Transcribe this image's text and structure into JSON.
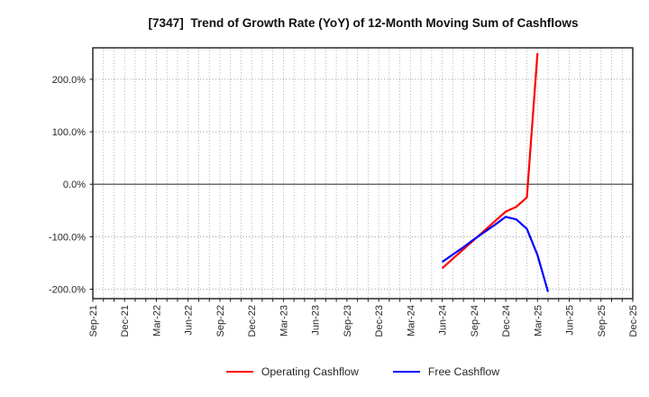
{
  "chart_data": {
    "type": "line",
    "title": "[7347]  Trend of Growth Rate (YoY) of 12-Month Moving Sum of Cashflows",
    "x_axis": {
      "start_month": "Sep-21",
      "end_month": "Dec-25",
      "months_total": 52,
      "label_every_n_months": 3,
      "tick_labels": [
        "Sep-21",
        "Dec-21",
        "Mar-22",
        "Jun-22",
        "Sep-22",
        "Dec-22",
        "Mar-23",
        "Jun-23",
        "Sep-23",
        "Dec-23",
        "Mar-24",
        "Jun-24",
        "Sep-24",
        "Dec-24",
        "Mar-25",
        "Jun-25",
        "Sep-25",
        "Dec-25"
      ]
    },
    "y_axis": {
      "unit": "%",
      "tick_values": [
        200,
        100,
        0,
        -100,
        -200
      ],
      "tick_labels": [
        "200.0%",
        "100.0%",
        "0.0%",
        "-100.0%",
        "-200.0%"
      ],
      "ylim": [
        -218,
        260
      ],
      "grid": "dotted horizontal at ticks, dotted vertical at every month, solid line at 0"
    },
    "series": [
      {
        "name": "Operating Cashflow",
        "color": "#ff0000",
        "points": [
          {
            "month": "Jun-24",
            "index": 33,
            "value": -160
          },
          {
            "month": "Jul-24",
            "index": 34,
            "value": -142
          },
          {
            "month": "Aug-24",
            "index": 35,
            "value": -124
          },
          {
            "month": "Sep-24",
            "index": 36,
            "value": -106
          },
          {
            "month": "Oct-24",
            "index": 37,
            "value": -88
          },
          {
            "month": "Nov-24",
            "index": 38,
            "value": -70
          },
          {
            "month": "Dec-24",
            "index": 39,
            "value": -52
          },
          {
            "month": "Jan-25",
            "index": 40,
            "value": -43
          },
          {
            "month": "Feb-25",
            "index": 41,
            "value": -25
          },
          {
            "month": "Mar-25",
            "index": 42,
            "value": 250
          }
        ]
      },
      {
        "name": "Free Cashflow",
        "color": "#0000ff",
        "points": [
          {
            "month": "Jun-24",
            "index": 33,
            "value": -148
          },
          {
            "month": "Jul-24",
            "index": 34,
            "value": -134
          },
          {
            "month": "Aug-24",
            "index": 35,
            "value": -120
          },
          {
            "month": "Sep-24",
            "index": 36,
            "value": -105
          },
          {
            "month": "Oct-24",
            "index": 37,
            "value": -91
          },
          {
            "month": "Nov-24",
            "index": 38,
            "value": -77
          },
          {
            "month": "Dec-24",
            "index": 39,
            "value": -62
          },
          {
            "month": "Jan-25",
            "index": 40,
            "value": -67
          },
          {
            "month": "Feb-25",
            "index": 41,
            "value": -85
          },
          {
            "month": "Mar-25",
            "index": 42,
            "value": -135
          },
          {
            "month": "Apr-25",
            "index": 43,
            "value": -205
          }
        ]
      }
    ],
    "legend": {
      "position": "bottom-center",
      "items": [
        {
          "label": "Operating Cashflow",
          "color": "#ff0000"
        },
        {
          "label": "Free Cashflow",
          "color": "#0000ff"
        }
      ]
    }
  }
}
